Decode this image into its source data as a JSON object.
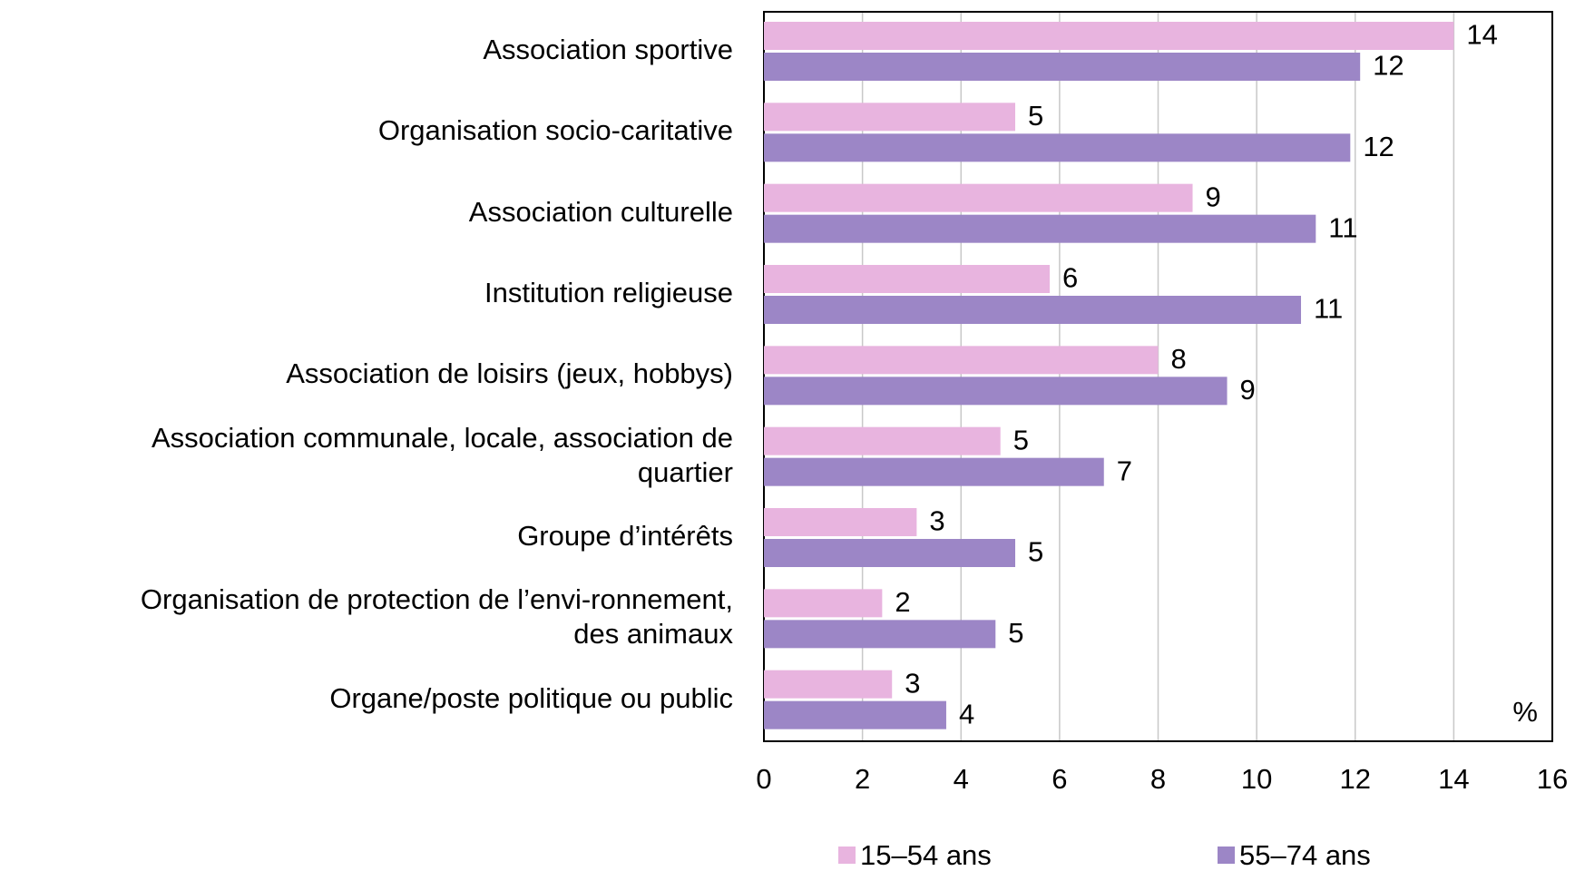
{
  "chart_data": {
    "type": "bar",
    "orientation": "horizontal",
    "categories": [
      "Association sportive",
      "Organisation socio-caritative",
      "Association culturelle",
      "Institution religieuse",
      "Association de loisirs (jeux, hobbys)",
      "Association communale, locale, association de\nquartier",
      "Groupe d’intérêts",
      "Organisation de protection de l’envi-ronnement,\ndes animaux",
      "Organe/poste politique ou public"
    ],
    "series": [
      {
        "name": "15–54 ans",
        "color": "#e8b4df",
        "values": [
          14.0,
          5.1,
          8.7,
          5.8,
          8.0,
          4.8,
          3.1,
          2.4,
          2.6
        ],
        "value_labels": [
          "14",
          "5",
          "9",
          "6",
          "8",
          "5",
          "3",
          "2",
          "3"
        ]
      },
      {
        "name": "55–74 ans",
        "color": "#9c86c6",
        "values": [
          12.1,
          11.9,
          11.2,
          10.9,
          9.4,
          6.9,
          5.1,
          4.7,
          3.7
        ],
        "value_labels": [
          "12",
          "12",
          "11",
          "11",
          "9",
          "7",
          "5",
          "5",
          "4"
        ]
      }
    ],
    "xlim": [
      0,
      16
    ],
    "xticks": [
      0,
      2,
      4,
      6,
      8,
      10,
      12,
      14,
      16
    ],
    "unit_label": "%",
    "grid": true,
    "legend": "bottom"
  }
}
